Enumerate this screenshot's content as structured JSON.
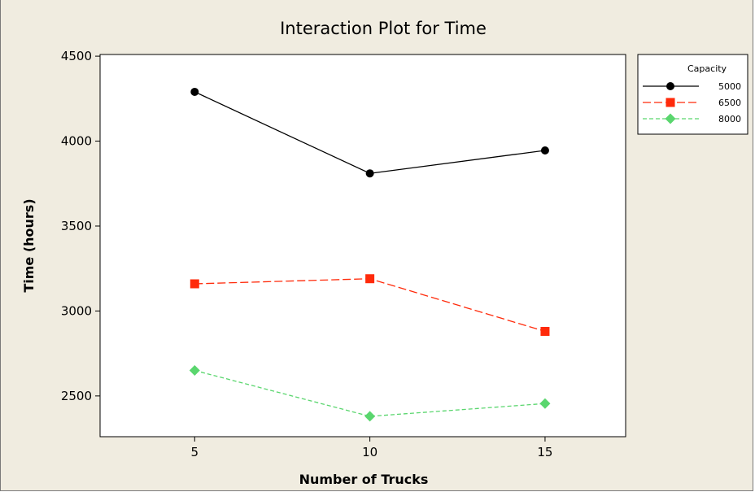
{
  "chart_data": {
    "type": "line",
    "title": "Interaction Plot for Time",
    "xlabel": "Number of Trucks",
    "ylabel": "Time (hours)",
    "x": [
      5,
      10,
      15
    ],
    "xlim": [
      2.3,
      17.3
    ],
    "ylim": [
      2260,
      4510
    ],
    "yticks": [
      2500,
      3000,
      3500,
      4000,
      4500
    ],
    "grid": false,
    "legend": {
      "title": "Capacity",
      "placement": "right"
    },
    "series": [
      {
        "name": "5000",
        "values": [
          4290,
          3810,
          3945
        ],
        "color": "#000000",
        "marker": "circle",
        "dash": "solid"
      },
      {
        "name": "6500",
        "values": [
          3160,
          3190,
          2880
        ],
        "color": "#ff2a0a",
        "marker": "square",
        "dash": "long-dash"
      },
      {
        "name": "8000",
        "values": [
          2650,
          2380,
          2455
        ],
        "color": "#5ad66e",
        "marker": "diamond",
        "dash": "short-dash"
      }
    ]
  }
}
